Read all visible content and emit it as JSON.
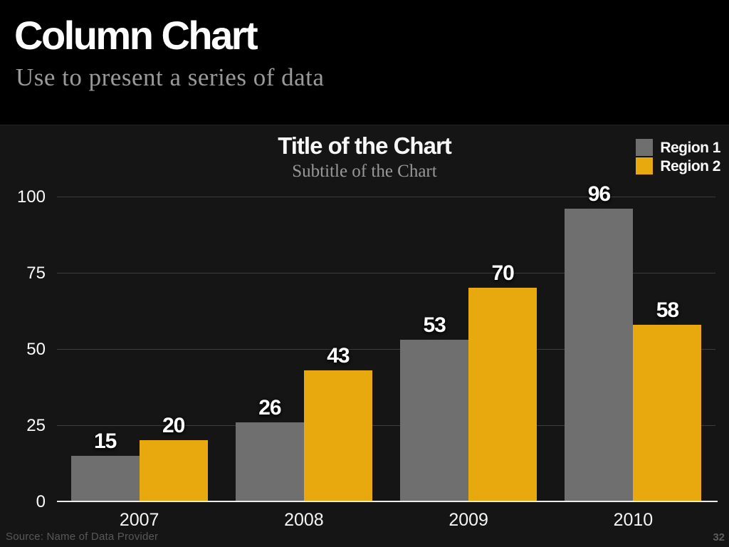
{
  "slide": {
    "title": "Column Chart",
    "subtitle": "Use to present a series of data",
    "source": "Source: Name of Data Provider",
    "page_number": "32"
  },
  "chart_data": {
    "type": "bar",
    "title": "Title of the Chart",
    "subtitle": "Subtitle of the Chart",
    "categories": [
      "2007",
      "2008",
      "2009",
      "2010"
    ],
    "series": [
      {
        "name": "Region 1",
        "color": "#6f6f6f",
        "values": [
          15,
          26,
          53,
          96
        ]
      },
      {
        "name": "Region 2",
        "color": "#e7a90e",
        "values": [
          20,
          43,
          70,
          58
        ]
      }
    ],
    "ylim": [
      0,
      100
    ],
    "yticks": [
      0,
      25,
      50,
      75,
      100
    ],
    "grid": true,
    "legend_position": "top-right",
    "grid_color": "#3c3c3c",
    "axis_color": "#ededed",
    "background_color": "#151515"
  }
}
